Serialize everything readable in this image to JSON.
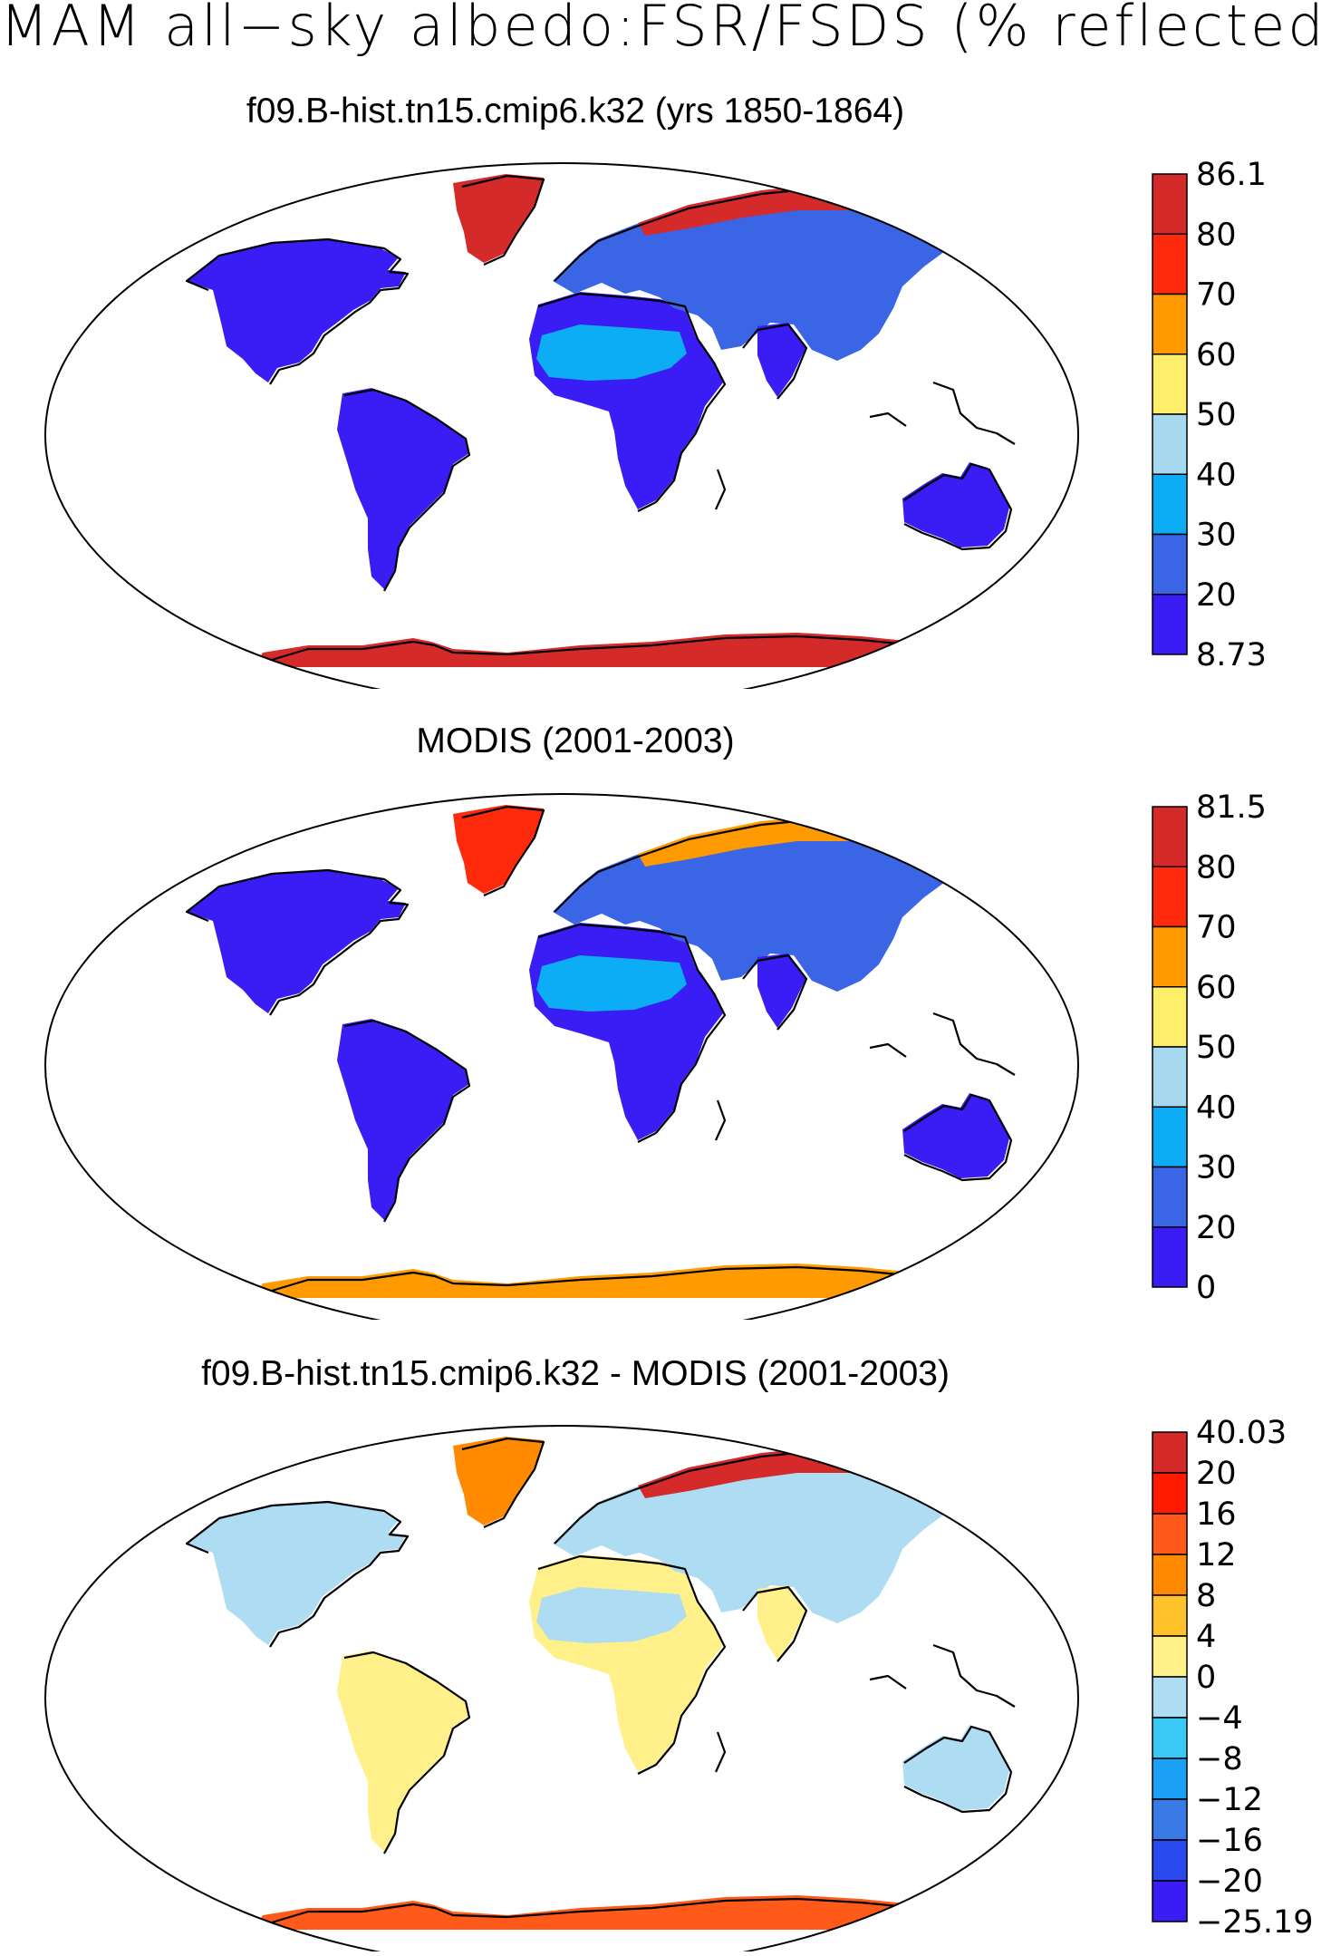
{
  "figure": {
    "title": "MAM all−sky albedo:FSR/FSDS (% reflected)"
  },
  "panels": [
    {
      "title": "f09.B-hist.tn15.cmip6.k32 (yrs 1850-1864)",
      "colorbar": {
        "labels": [
          "86.1",
          "80",
          "70",
          "60",
          "50",
          "40",
          "30",
          "20",
          "8.73"
        ],
        "colors": [
          "#d42a2a",
          "#ff2a0c",
          "#ff9a00",
          "#ffee6a",
          "#a6d8f0",
          "#0cadf5",
          "#3a66e6",
          "#3a1cf5"
        ]
      },
      "land_fill": {
        "north_america": "#3a1cf5",
        "greenland": "#d42a2a",
        "south_america": "#3a1cf5",
        "africa": "#3a1cf5",
        "sahara": "#0cadf5",
        "eurasia": "#3a66e6",
        "siberia_north": "#d42a2a",
        "india": "#3a1cf5",
        "australia": "#3a1cf5",
        "antarctica": "#d42a2a"
      }
    },
    {
      "title": "MODIS (2001-2003)",
      "colorbar": {
        "labels": [
          "81.5",
          "80",
          "70",
          "60",
          "50",
          "40",
          "30",
          "20",
          "0"
        ],
        "colors": [
          "#d42a2a",
          "#ff2a0c",
          "#ff9a00",
          "#ffee6a",
          "#a6d8f0",
          "#0cadf5",
          "#3a66e6",
          "#3a1cf5"
        ]
      },
      "land_fill": {
        "north_america": "#3a1cf5",
        "greenland": "#ff2a0c",
        "south_america": "#3a1cf5",
        "africa": "#3a1cf5",
        "sahara": "#0cadf5",
        "eurasia": "#3a66e6",
        "siberia_north": "#ff9a00",
        "india": "#3a1cf5",
        "australia": "#3a1cf5",
        "antarctica": "#ff9a00"
      }
    },
    {
      "title": "f09.B-hist.tn15.cmip6.k32 - MODIS (2001-2003)",
      "colorbar": {
        "labels": [
          "40.03",
          "20",
          "16",
          "12",
          "8",
          "4",
          "0",
          "−4",
          "−8",
          "−12",
          "−16",
          "−20",
          "−25.19"
        ],
        "colors": [
          "#d42a2a",
          "#ff1a00",
          "#ff5a1a",
          "#ff8a00",
          "#ffc22a",
          "#fff08a",
          "#aedcf2",
          "#3ac8f5",
          "#1aa0f5",
          "#3a7ae6",
          "#2a4af0",
          "#3a1cf5"
        ]
      },
      "land_fill": {
        "north_america": "#aedcf2",
        "greenland": "#ff8a00",
        "south_america": "#fff08a",
        "africa": "#fff08a",
        "sahara": "#aedcf2",
        "eurasia": "#aedcf2",
        "siberia_north": "#d42a2a",
        "india": "#fff08a",
        "australia": "#aedcf2",
        "antarctica": "#ff5a1a"
      }
    }
  ]
}
